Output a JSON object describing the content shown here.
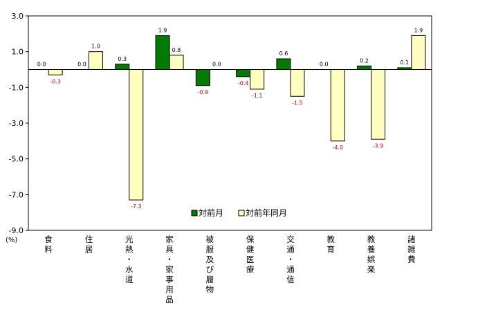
{
  "chart_data": {
    "type": "bar",
    "unit_label": "(%)",
    "categories": [
      "食料",
      "住居",
      "光熱・水道",
      "家具・家事用品",
      "被服及び履物",
      "保健医療",
      "交通・通信",
      "教育",
      "教養娯楽",
      "諸雑費"
    ],
    "series": [
      {
        "name": "対前月",
        "color": "#007a00",
        "values": [
          0.0,
          0.0,
          0.3,
          1.9,
          -0.9,
          -0.4,
          0.6,
          0.0,
          0.2,
          0.1
        ],
        "labels": [
          "0.0",
          "0.0",
          "0.3",
          "1.9",
          "-0.9",
          "-0.4",
          "0.6",
          "0.0",
          "0.2",
          "0.1"
        ]
      },
      {
        "name": "対前年同月",
        "color": "#ffffc0",
        "values": [
          -0.3,
          1.0,
          -7.3,
          0.8,
          0.0,
          -1.1,
          -1.5,
          -4.0,
          -3.9,
          1.9
        ],
        "labels": [
          "-0.3",
          "1.0",
          "-7.3",
          "0.8",
          "0.0",
          "-1.1",
          "-1.5",
          "-4.0",
          "-3.9",
          "1.9"
        ]
      }
    ],
    "ylim": [
      -9.0,
      3.0
    ],
    "yticks": [
      "3.0",
      "1.0",
      "-1.0",
      "-3.0",
      "-5.0",
      "-7.0",
      "-9.0"
    ],
    "ytick_values": [
      3,
      1,
      -1,
      -3,
      -5,
      -7,
      -9
    ],
    "negative_label_color": "#cc0000",
    "positive_label_color": "#000000",
    "grid": false,
    "legend_position": "lower-center"
  }
}
